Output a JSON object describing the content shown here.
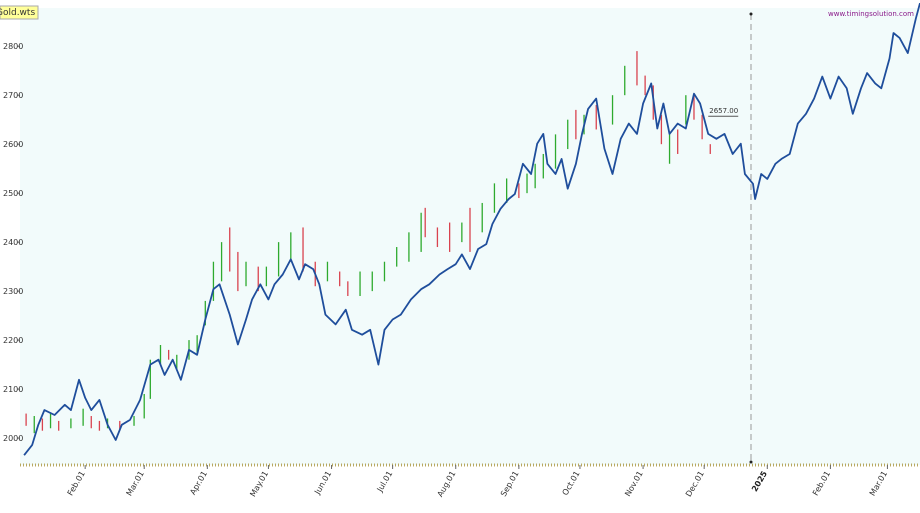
{
  "chart_data": {
    "type": "line",
    "title": "Gold.wts",
    "source": "www.timingsolution.com",
    "xlim": [
      -1,
      441
    ],
    "ylim": [
      1945,
      2878
    ],
    "yticks": [
      2000,
      2100,
      2200,
      2300,
      2400,
      2500,
      2600,
      2700,
      2800
    ],
    "xticks": [
      {
        "value": 31,
        "label": "Feb.01"
      },
      {
        "value": 60,
        "label": "Mar.01"
      },
      {
        "value": 91,
        "label": "Apr.01"
      },
      {
        "value": 121,
        "label": "May.01"
      },
      {
        "value": 152,
        "label": "Jun.01"
      },
      {
        "value": 182,
        "label": "Jul.01"
      },
      {
        "value": 213,
        "label": "Aug.01"
      },
      {
        "value": 244,
        "label": "Sep.01"
      },
      {
        "value": 274,
        "label": "Oct.01"
      },
      {
        "value": 305,
        "label": "Nov.01"
      },
      {
        "value": 335,
        "label": "Dec.01"
      },
      {
        "value": 366,
        "label": "2025"
      },
      {
        "value": 397,
        "label": "Feb.01"
      },
      {
        "value": 425,
        "label": "Mar.01"
      }
    ],
    "divider_x": 358,
    "annotation": {
      "value": 2657,
      "label": "2657.00",
      "x": 337
    },
    "line_color": "#1f4e9c",
    "up_color": "#2eaa2e",
    "down_color": "#d9434f",
    "series": [
      {
        "color": "#1f4e9c",
        "x": [
          1,
          5,
          8,
          11,
          16,
          21,
          24,
          28,
          31,
          34,
          38,
          42,
          46,
          49,
          53,
          58,
          63,
          67,
          70,
          74,
          78,
          82,
          86,
          90,
          94,
          97,
          102,
          106,
          110,
          113,
          117,
          121,
          124,
          128,
          132,
          136,
          139,
          143,
          146,
          149,
          154,
          159,
          162,
          167,
          171,
          175,
          178,
          182,
          186,
          191,
          196,
          200,
          205,
          209,
          213,
          216,
          220,
          224,
          228,
          231,
          235,
          239,
          242,
          246,
          250,
          253,
          256,
          258,
          262,
          265,
          268,
          272,
          275,
          278,
          282,
          284,
          286,
          290,
          294,
          298,
          302,
          305,
          309,
          312,
          315,
          318,
          322,
          326,
          330,
          333,
          337,
          341,
          345,
          349,
          353,
          355,
          359,
          360,
          363,
          366,
          370,
          373,
          377,
          381,
          385,
          389,
          393,
          397,
          401,
          405,
          408,
          412,
          415,
          419,
          422,
          426,
          428,
          431,
          435,
          439,
          441
        ],
        "values": [
          1965,
          1986,
          2027,
          2057,
          2047,
          2068,
          2057,
          2119,
          2082,
          2057,
          2078,
          2027,
          1996,
          2027,
          2037,
          2078,
          2150,
          2160,
          2129,
          2160,
          2119,
          2180,
          2170,
          2242,
          2304,
          2314,
          2252,
          2191,
          2242,
          2283,
          2314,
          2283,
          2314,
          2334,
          2365,
          2324,
          2355,
          2345,
          2314,
          2252,
          2232,
          2262,
          2221,
          2211,
          2221,
          2150,
          2221,
          2242,
          2252,
          2283,
          2304,
          2314,
          2334,
          2345,
          2355,
          2375,
          2345,
          2386,
          2396,
          2437,
          2468,
          2488,
          2498,
          2560,
          2539,
          2601,
          2621,
          2560,
          2539,
          2570,
          2509,
          2560,
          2621,
          2672,
          2693,
          2642,
          2591,
          2539,
          2611,
          2642,
          2621,
          2683,
          2724,
          2632,
          2683,
          2621,
          2642,
          2632,
          2703,
          2683,
          2621,
          2611,
          2621,
          2580,
          2601,
          2539,
          2519,
          2488,
          2539,
          2529,
          2560,
          2570,
          2580,
          2642,
          2662,
          2693,
          2738,
          2693,
          2738,
          2714,
          2662,
          2714,
          2745,
          2724,
          2714,
          2775,
          2827,
          2817,
          2786,
          2857,
          2888
        ]
      }
    ],
    "price_bars": {
      "x": [
        2,
        6,
        10,
        14,
        18,
        24,
        30,
        34,
        38,
        42,
        48,
        55,
        60,
        63,
        68,
        72,
        76,
        82,
        86,
        90,
        94,
        98,
        102,
        106,
        110,
        116,
        120,
        126,
        132,
        138,
        144,
        150,
        156,
        160,
        166,
        172,
        178,
        184,
        190,
        196,
        198,
        204,
        210,
        216,
        220,
        226,
        232,
        238,
        244,
        248,
        252,
        256,
        262,
        268,
        272,
        276,
        282,
        290,
        296,
        302,
        306,
        310,
        314,
        318,
        322,
        326,
        330,
        334,
        338
      ],
      "low": [
        2025,
        2010,
        2015,
        2020,
        2015,
        2020,
        2025,
        2020,
        2015,
        2020,
        2015,
        2025,
        2040,
        2080,
        2150,
        2160,
        2140,
        2160,
        2170,
        2230,
        2280,
        2320,
        2340,
        2300,
        2310,
        2300,
        2310,
        2330,
        2360,
        2340,
        2310,
        2320,
        2310,
        2290,
        2290,
        2300,
        2320,
        2350,
        2360,
        2380,
        2410,
        2390,
        2380,
        2400,
        2380,
        2420,
        2460,
        2480,
        2490,
        2500,
        2510,
        2530,
        2550,
        2590,
        2610,
        2620,
        2630,
        2640,
        2700,
        2720,
        2700,
        2650,
        2600,
        2560,
        2580,
        2640,
        2650,
        2610,
        2580
      ],
      "high": [
        2050,
        2045,
        2040,
        2050,
        2035,
        2040,
        2060,
        2045,
        2035,
        2040,
        2035,
        2045,
        2090,
        2160,
        2190,
        2180,
        2170,
        2200,
        2210,
        2280,
        2360,
        2400,
        2430,
        2380,
        2360,
        2350,
        2350,
        2400,
        2420,
        2430,
        2360,
        2360,
        2340,
        2320,
        2340,
        2340,
        2360,
        2390,
        2420,
        2460,
        2470,
        2430,
        2440,
        2440,
        2470,
        2480,
        2520,
        2530,
        2520,
        2540,
        2560,
        2580,
        2620,
        2650,
        2670,
        2660,
        2680,
        2700,
        2760,
        2790,
        2740,
        2720,
        2660,
        2620,
        2630,
        2700,
        2700,
        2660,
        2600
      ],
      "up": [
        false,
        true,
        false,
        true,
        false,
        true,
        true,
        false,
        false,
        true,
        false,
        true,
        true,
        true,
        true,
        false,
        true,
        true,
        true,
        true,
        true,
        true,
        false,
        false,
        true,
        false,
        true,
        true,
        true,
        false,
        false,
        true,
        false,
        false,
        true,
        true,
        true,
        true,
        true,
        true,
        false,
        false,
        false,
        true,
        false,
        true,
        true,
        true,
        false,
        true,
        true,
        true,
        true,
        true,
        false,
        true,
        false,
        true,
        true,
        false,
        false,
        false,
        false,
        true,
        false,
        true,
        false,
        false,
        false
      ]
    }
  }
}
